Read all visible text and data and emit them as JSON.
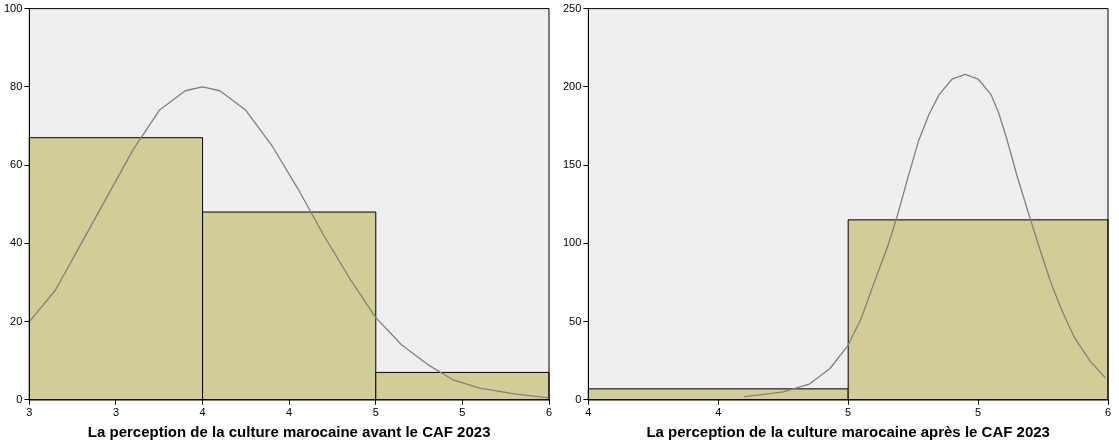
{
  "chart_data": [
    {
      "type": "histogram",
      "xlabel": "La perception de la culture marocaine avant le CAF 2023",
      "xlim": [
        3,
        6
      ],
      "xticks": [
        3,
        {
          "value": 3.5,
          "label": "3"
        },
        4,
        {
          "value": 4.5,
          "label": "4"
        },
        5,
        {
          "value": 5.5,
          "label": "5"
        },
        6
      ],
      "ylim": [
        0,
        100
      ],
      "yticks": [
        0,
        20,
        40,
        60,
        80,
        100
      ],
      "series": [
        {
          "type": "histogram",
          "bins": [
            3,
            4,
            5,
            6
          ],
          "values": [
            67,
            48,
            7
          ],
          "color": "#d2cd96"
        },
        {
          "type": "line",
          "color": "#808080",
          "x": [
            3,
            3.15,
            3.3,
            3.45,
            3.6,
            3.75,
            3.9,
            4,
            4.1,
            4.25,
            4.4,
            4.55,
            4.7,
            4.85,
            5,
            5.15,
            5.3,
            5.45,
            5.6,
            5.8,
            6
          ],
          "values": [
            20,
            28,
            40,
            52,
            64,
            74,
            79,
            80,
            79,
            74,
            65,
            54,
            42,
            31,
            21,
            14,
            9,
            5,
            3,
            1.5,
            0.5
          ]
        }
      ]
    },
    {
      "type": "histogram",
      "xlabel": "La perception de la culture marocaine après le CAF 2023",
      "xlim": [
        4,
        6
      ],
      "xticks": [
        4,
        {
          "value": 4.5,
          "label": "4"
        },
        5,
        {
          "value": 5.5,
          "label": "5"
        },
        6
      ],
      "ylim": [
        0,
        250
      ],
      "yticks": [
        0,
        50,
        100,
        150,
        200,
        250
      ],
      "series": [
        {
          "type": "histogram",
          "bins": [
            4,
            5,
            6
          ],
          "values": [
            7,
            115
          ],
          "color": "#d2cd96"
        },
        {
          "type": "line",
          "color": "#808080",
          "x": [
            4.6,
            4.75,
            4.85,
            4.93,
            5,
            5.05,
            5.1,
            5.15,
            5.19,
            5.23,
            5.27,
            5.31,
            5.35,
            5.4,
            5.45,
            5.5,
            5.55,
            5.58,
            5.61,
            5.65,
            5.7,
            5.74,
            5.78,
            5.82,
            5.87,
            5.93,
            5.99
          ],
          "values": [
            2,
            5,
            10,
            20,
            35,
            52,
            75,
            97,
            118,
            142,
            165,
            182,
            195,
            205,
            208,
            205,
            195,
            183,
            167,
            143,
            116,
            95,
            75,
            58,
            40,
            25,
            14
          ]
        }
      ]
    }
  ]
}
